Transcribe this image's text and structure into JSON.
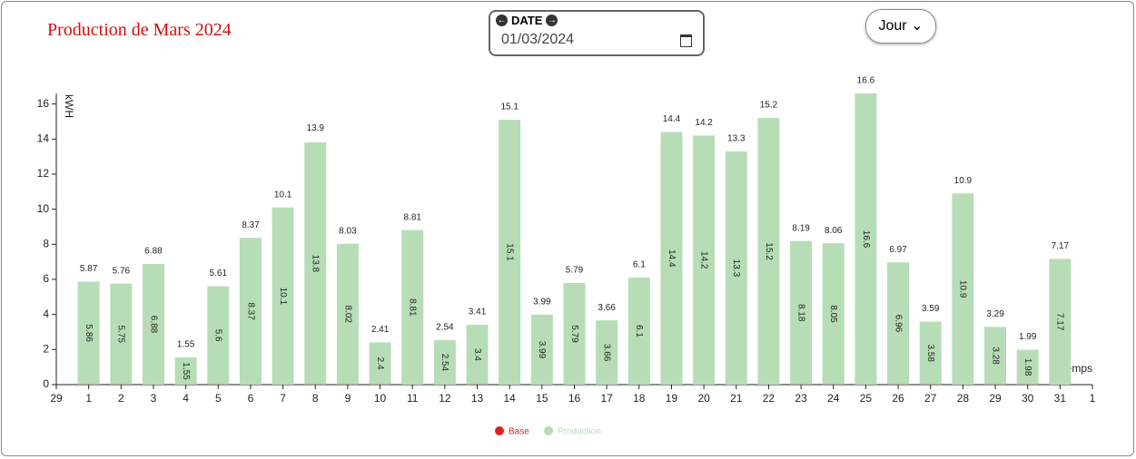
{
  "ui": {
    "date_label": "DATE",
    "date_value": "01/03/2024",
    "period": "Jour"
  },
  "chart_data": {
    "type": "bar",
    "title": "Production de Mars 2024",
    "ylabel": "kWH",
    "xlabel": "temps",
    "categories": [
      "29",
      "1",
      "2",
      "3",
      "4",
      "5",
      "6",
      "7",
      "8",
      "9",
      "10",
      "11",
      "12",
      "13",
      "14",
      "15",
      "16",
      "17",
      "18",
      "19",
      "20",
      "21",
      "22",
      "23",
      "24",
      "25",
      "26",
      "27",
      "28",
      "29",
      "30",
      "31",
      "1"
    ],
    "series": [
      {
        "name": "Base",
        "color": "#e02020",
        "values": [
          null,
          0.01,
          0.01,
          0,
          0,
          0.01,
          0,
          0,
          0.01,
          0.01,
          0.01,
          0,
          0,
          0.01,
          0,
          0,
          0,
          0,
          0,
          0,
          0,
          0,
          0,
          0.01,
          0.01,
          0,
          0.01,
          0.01,
          0,
          0.01,
          0.01,
          0,
          null
        ]
      },
      {
        "name": "Production",
        "color": "#b7ddb7",
        "values": [
          null,
          5.86,
          5.75,
          6.88,
          1.55,
          5.6,
          8.37,
          10.1,
          13.8,
          8.02,
          2.4,
          8.81,
          2.54,
          3.4,
          15.1,
          3.99,
          5.79,
          3.66,
          6.1,
          14.4,
          14.2,
          13.3,
          15.2,
          8.18,
          8.05,
          16.6,
          6.96,
          3.58,
          10.9,
          3.28,
          1.98,
          7.17,
          null
        ]
      }
    ],
    "totals": [
      null,
      5.87,
      5.76,
      6.88,
      1.55,
      5.61,
      8.37,
      10.1,
      13.9,
      8.03,
      2.41,
      8.81,
      2.54,
      3.41,
      15.1,
      3.99,
      5.79,
      3.66,
      6.1,
      14.4,
      14.2,
      13.3,
      15.2,
      8.19,
      8.06,
      16.6,
      6.97,
      3.59,
      10.9,
      3.29,
      1.99,
      7.17,
      null
    ],
    "ylim": [
      0,
      16.6
    ],
    "yticks": [
      0,
      2,
      4,
      6,
      8,
      10,
      12,
      14,
      16
    ],
    "grid": false
  }
}
